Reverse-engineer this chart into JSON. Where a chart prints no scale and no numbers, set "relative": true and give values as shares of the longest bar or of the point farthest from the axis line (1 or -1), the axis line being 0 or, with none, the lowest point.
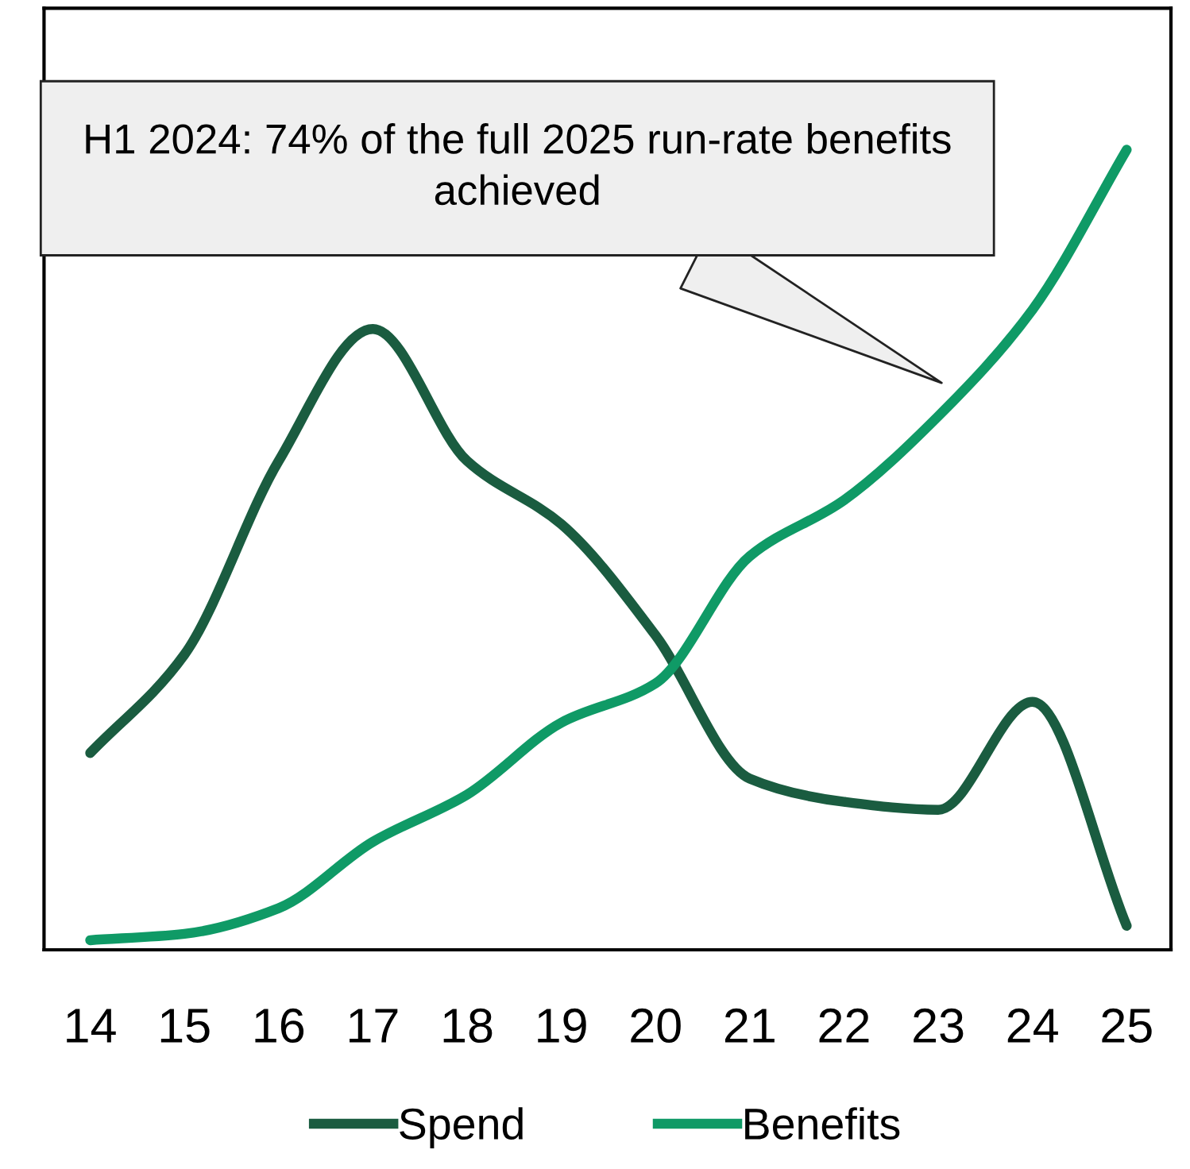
{
  "chart_data": {
    "type": "line",
    "relative": true,
    "categories": [
      "14",
      "15",
      "16",
      "17",
      "18",
      "19",
      "20",
      "21",
      "22",
      "23",
      "24",
      "25"
    ],
    "series": [
      {
        "name": "Spend",
        "color": "#1a5c40",
        "values": [
          0.246,
          0.369,
          0.611,
          0.776,
          0.611,
          0.532,
          0.393,
          0.214,
          0.185,
          0.175,
          0.31,
          0.03
        ]
      },
      {
        "name": "Benefits",
        "color": "#0f9a66",
        "values": [
          0.012,
          0.02,
          0.052,
          0.135,
          0.194,
          0.284,
          0.333,
          0.492,
          0.562,
          0.667,
          0.8,
          1.0
        ]
      }
    ],
    "annotations": [
      "H1 2024: 74% of the full 2025 run-rate benefits achieved"
    ],
    "legend": "bottom",
    "grid": false,
    "marker": "none",
    "line_style": "solid"
  }
}
